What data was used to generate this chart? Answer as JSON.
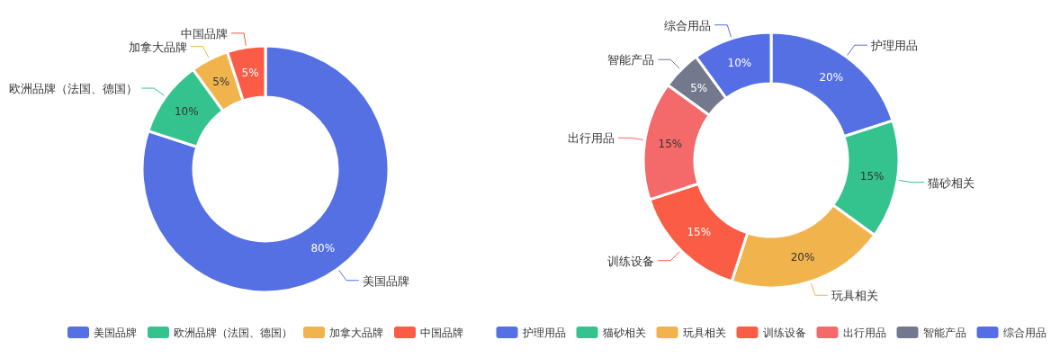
{
  "chart_data": [
    {
      "type": "donut",
      "categories": [
        "美国品牌",
        "欧洲品牌（法国、德国）",
        "加拿大品牌",
        "中国品牌"
      ],
      "values": [
        80,
        10,
        5,
        5
      ],
      "value_labels": [
        "80%",
        "10%",
        "5%",
        "5%"
      ],
      "colors": [
        "#5470e3",
        "#34c38f",
        "#f1b44c",
        "#fa5c46"
      ],
      "legend": "bottom"
    },
    {
      "type": "donut",
      "categories": [
        "护理用品",
        "猫砂相关",
        "玩具相关",
        "训练设备",
        "出行用品",
        "智能产品",
        "综合用品"
      ],
      "values": [
        20,
        15,
        20,
        15,
        15,
        5,
        10
      ],
      "value_labels": [
        "20%",
        "15%",
        "20%",
        "15%",
        "15%",
        "5%",
        "10%"
      ],
      "colors": [
        "#5470e3",
        "#34c38f",
        "#f1b44c",
        "#fa5c46",
        "#f46a6a",
        "#74788d",
        "#556ee6"
      ],
      "legend": "bottom"
    }
  ]
}
